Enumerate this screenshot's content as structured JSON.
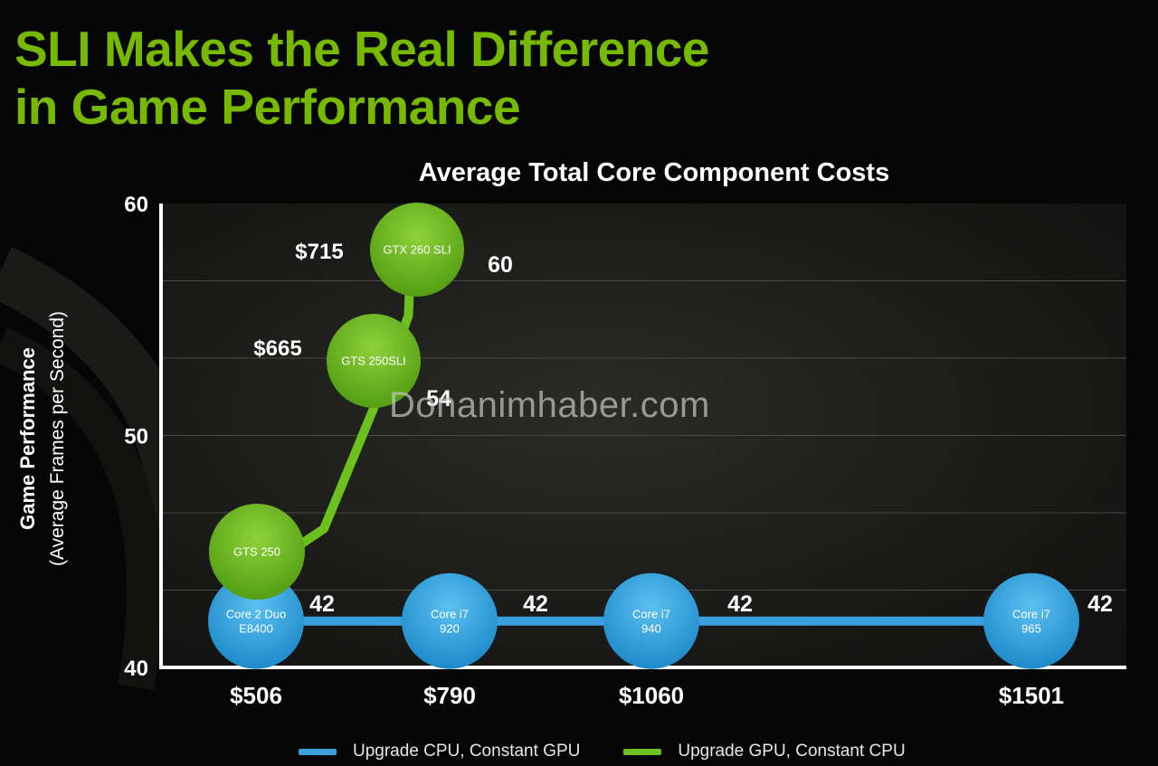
{
  "slide": {
    "title_lines": [
      "SLI Makes the Real Difference",
      "in Game Performance"
    ],
    "watermark": "Donanimhaber.com"
  },
  "colors": {
    "background": "#050605",
    "title": "#76b900",
    "cpu_series": "#3a9fdc",
    "gpu_series": "#6cc11e",
    "text": "#ffffff"
  },
  "chart_data": {
    "type": "line",
    "title": "Average Total Core Component Costs",
    "xlabel": "",
    "ylabel": "Game Performance",
    "ylabel_sub": "(Average Frames per Second)",
    "x_ticks": [
      "$506",
      "$790",
      "$1060",
      "$1501"
    ],
    "xlim": [
      300,
      1600
    ],
    "ylim": [
      40,
      60
    ],
    "y_ticks": [
      40,
      50,
      60
    ],
    "grid": true,
    "legend_position": "bottom",
    "series": [
      {
        "name": "Upgrade CPU, Constant GPU",
        "color": "#3a9fdc",
        "points": [
          {
            "x": 506,
            "y": 42,
            "bubble": [
              "Core 2 Duo",
              "E8400"
            ],
            "value_label": "42"
          },
          {
            "x": 790,
            "y": 42,
            "bubble": [
              "Core i7",
              "920"
            ],
            "value_label": "42"
          },
          {
            "x": 1060,
            "y": 42,
            "bubble": [
              "Core i7",
              "940"
            ],
            "value_label": "42"
          },
          {
            "x": 1501,
            "y": 42,
            "bubble": [
              "Core i7",
              "965"
            ],
            "value_label": "42"
          }
        ]
      },
      {
        "name": "Upgrade GPU, Constant CPU",
        "color": "#6cc11e",
        "points": [
          {
            "x": 506,
            "y": 45,
            "bubble": [
              "GTS 250"
            ]
          },
          {
            "x": 665,
            "y": 54,
            "bubble": [
              "GTS 250SLI"
            ],
            "value_label": "54",
            "cost_label": "$665"
          },
          {
            "x": 715,
            "y": 60,
            "bubble": [
              "GTX 260 SLI"
            ],
            "value_label": "60",
            "cost_label": "$715"
          }
        ]
      }
    ]
  }
}
